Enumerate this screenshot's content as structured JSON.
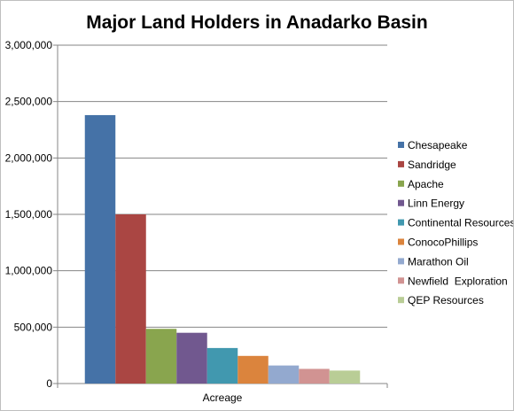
{
  "chart_data": {
    "type": "bar",
    "title": "Major Land Holders in Anadarko Basin",
    "categories": [
      "Acreage"
    ],
    "series": [
      {
        "name": "Chesapeake",
        "values": [
          2380000
        ],
        "color": "#4572A7"
      },
      {
        "name": "Sandridge",
        "values": [
          1500000
        ],
        "color": "#AA4643"
      },
      {
        "name": "Apache",
        "values": [
          485000
        ],
        "color": "#89A54E"
      },
      {
        "name": "Linn Energy",
        "values": [
          450000
        ],
        "color": "#71588F"
      },
      {
        "name": "Continental Resources",
        "values": [
          315000
        ],
        "color": "#4198AF"
      },
      {
        "name": "ConocoPhillips",
        "values": [
          245000
        ],
        "color": "#DB843D"
      },
      {
        "name": "Marathon Oil",
        "values": [
          160000
        ],
        "color": "#93A9CF"
      },
      {
        "name": "Newfield  Exploration",
        "values": [
          130000
        ],
        "color": "#D19392"
      },
      {
        "name": "QEP Resources",
        "values": [
          115000
        ],
        "color": "#B9CD96"
      }
    ],
    "ylim": [
      0,
      3000000
    ],
    "yticks": [
      0,
      500000,
      1000000,
      1500000,
      2000000,
      2500000,
      3000000
    ],
    "ytick_labels": [
      "0",
      "500,000",
      "1,000,000",
      "1,500,000",
      "2,000,000",
      "2,500,000",
      "3,000,000"
    ],
    "grid": true,
    "legend": "right"
  }
}
